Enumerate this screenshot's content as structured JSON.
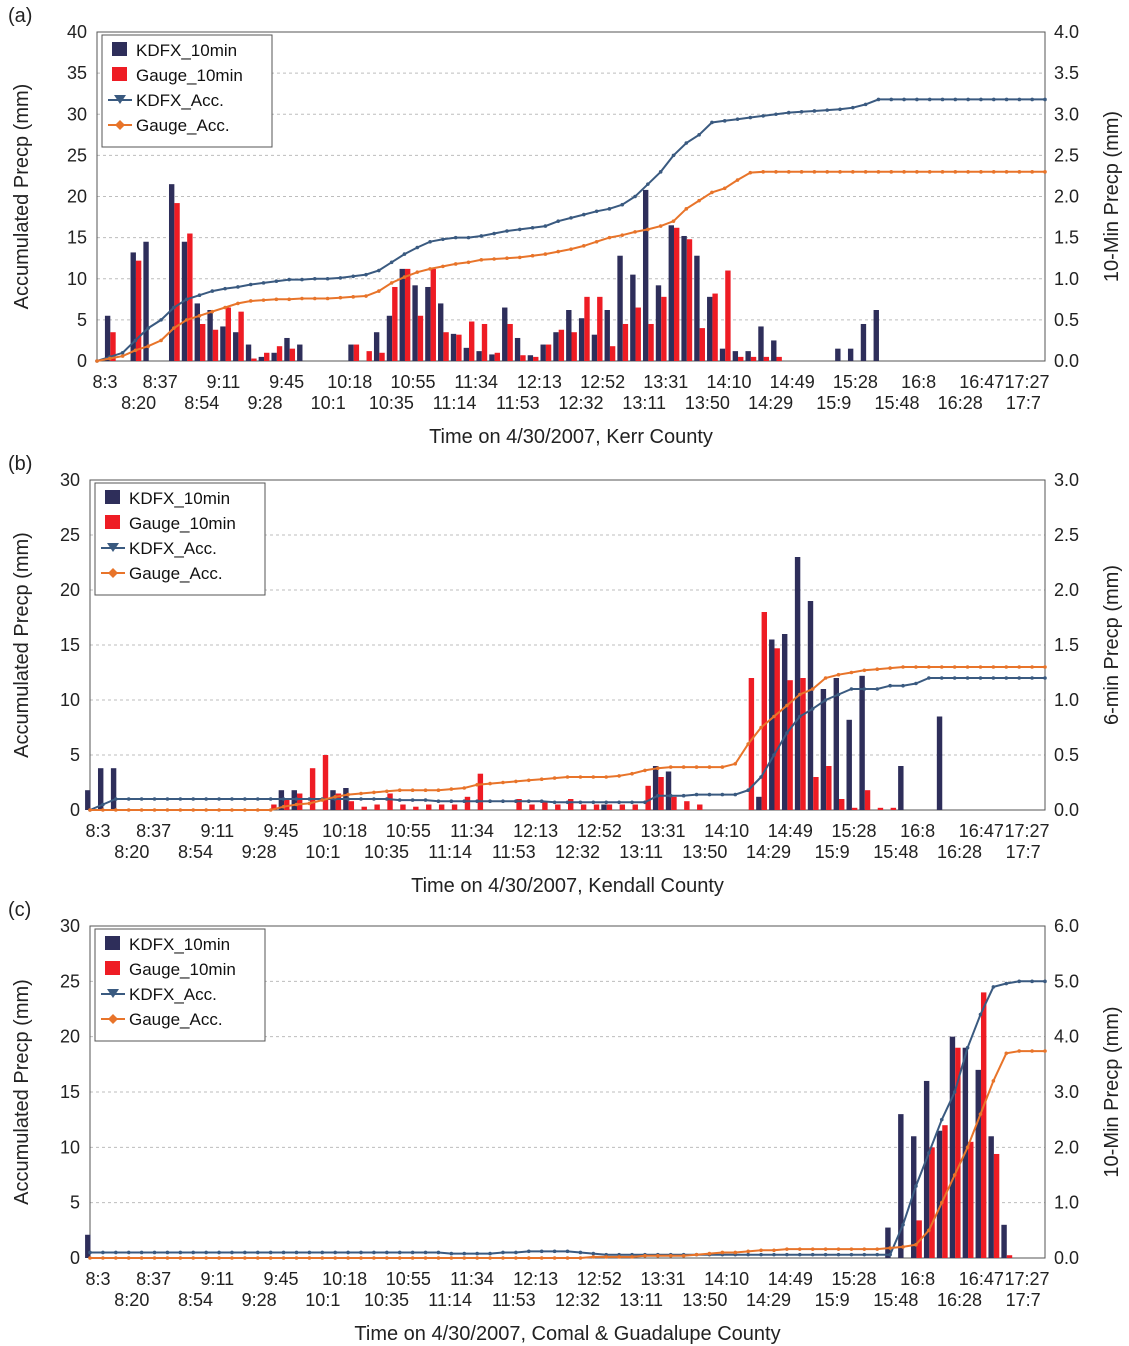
{
  "colors": {
    "kdfx_bar": "#2e2e5a",
    "gauge_bar": "#ee1c24",
    "kdfx_acc": "#3a5a80",
    "gauge_acc": "#e8742a"
  },
  "time_labels_upper": [
    "8:3",
    "8:37",
    "9:11",
    "9:45",
    "10:18",
    "10:55",
    "11:34",
    "12:13",
    "12:52",
    "13:31",
    "14:10",
    "14:49",
    "15:28",
    "16:8",
    "16:47",
    "17:27"
  ],
  "time_labels_lower": [
    "8:20",
    "8:54",
    "9:28",
    "10:1",
    "10:35",
    "11:14",
    "11:53",
    "12:32",
    "13:11",
    "13:50",
    "14:29",
    "15:9",
    "15:48",
    "16:28",
    "17:7"
  ],
  "chart_data": [
    {
      "panel": "(a)",
      "type": "bar",
      "xlabel": "Time on 4/30/2007, Kerr County",
      "ylabel": "Accumulated Precp (mm)",
      "y2label": "10-Min Precp (mm)",
      "ylim": [
        0,
        40
      ],
      "y2lim": [
        0,
        4
      ],
      "yticks": [
        "0",
        "5",
        "10",
        "15",
        "20",
        "25",
        "30",
        "35",
        "40"
      ],
      "y2ticks": [
        "0.0",
        "0.5",
        "1.0",
        "1.5",
        "2.0",
        "2.5",
        "3.0",
        "3.5",
        "4.0"
      ],
      "legend": [
        "KDFX_10min",
        "Gauge_10min",
        "KDFX_Acc.",
        "Gauge_Acc."
      ],
      "legend_position": "top-left",
      "series": [
        {
          "name": "KDFX_10min",
          "kind": "bar",
          "axis": "right",
          "values": [
            0,
            0.55,
            0,
            1.32,
            1.45,
            0,
            2.15,
            1.45,
            0.7,
            0.62,
            0.42,
            0.35,
            0.2,
            0.05,
            0.1,
            0.28,
            0.2,
            0,
            0,
            0,
            0.2,
            0,
            0.35,
            0.55,
            1.12,
            0.92,
            0.9,
            0.7,
            0.33,
            0.16,
            0.12,
            0.08,
            0.65,
            0.28,
            0.07,
            0.2,
            0.35,
            0.62,
            0.52,
            0.32,
            0.62,
            1.28,
            1.05,
            2.08,
            0.92,
            1.65,
            1.52,
            1.28,
            0.78,
            0.15,
            0.12,
            0.12,
            0.42,
            0.25,
            0,
            0,
            0,
            0,
            0.15,
            0.15,
            0.45,
            0.62,
            0,
            0,
            0,
            0,
            0,
            0,
            0,
            0,
            0,
            0,
            0,
            0,
            0
          ]
        },
        {
          "name": "Gauge_10min",
          "kind": "bar",
          "axis": "right",
          "values": [
            0,
            0.35,
            0,
            1.22,
            0,
            0,
            1.92,
            1.55,
            0.45,
            0.38,
            0.65,
            0.6,
            0.03,
            0.1,
            0.18,
            0.15,
            0,
            0,
            0,
            0,
            0.2,
            0.12,
            0.1,
            0.9,
            1.12,
            0.55,
            1.12,
            0.35,
            0.32,
            0.48,
            0.45,
            0.1,
            0.45,
            0.07,
            0.05,
            0.2,
            0.38,
            0.35,
            0.78,
            0.78,
            0.18,
            0.45,
            0.65,
            0.45,
            0.78,
            1.62,
            1.48,
            0.4,
            0.82,
            1.1,
            0.05,
            0.05,
            0.05,
            0.05,
            0,
            0,
            0,
            0,
            0,
            0,
            0,
            0,
            0,
            0,
            0,
            0,
            0,
            0,
            0,
            0,
            0,
            0,
            0,
            0,
            0
          ]
        },
        {
          "name": "KDFX_Acc.",
          "kind": "line",
          "axis": "left",
          "values": [
            0,
            0.5,
            1,
            2.5,
            4,
            5,
            6.5,
            7.5,
            8,
            8.5,
            8.8,
            9,
            9.3,
            9.5,
            9.7,
            9.9,
            9.9,
            10,
            10,
            10.1,
            10.3,
            10.5,
            11,
            12,
            13,
            13.8,
            14.5,
            14.8,
            15,
            15,
            15.2,
            15.5,
            15.8,
            16,
            16.2,
            16.4,
            17,
            17.4,
            17.8,
            18.2,
            18.5,
            19,
            20,
            21.5,
            23,
            25,
            26.5,
            27.5,
            29,
            29.2,
            29.4,
            29.6,
            29.8,
            30,
            30.2,
            30.3,
            30.4,
            30.5,
            30.6,
            30.8,
            31.2,
            31.8,
            31.8,
            31.8,
            31.8,
            31.8,
            31.8,
            31.8,
            31.8,
            31.8,
            31.8,
            31.8,
            31.8,
            31.8,
            31.8
          ]
        },
        {
          "name": "Gauge_Acc.",
          "kind": "line",
          "axis": "left",
          "values": [
            0,
            0.3,
            0.6,
            1.3,
            1.8,
            2.5,
            4,
            5,
            5.5,
            6,
            6.5,
            7,
            7.3,
            7.4,
            7.5,
            7.5,
            7.6,
            7.6,
            7.6,
            7.7,
            7.8,
            7.9,
            8.5,
            9.5,
            10.2,
            10.8,
            11.2,
            11.5,
            11.8,
            12,
            12.3,
            12.4,
            12.5,
            12.6,
            12.8,
            13,
            13.3,
            13.6,
            14,
            14.5,
            15,
            15.3,
            15.7,
            16,
            16.4,
            17,
            18.5,
            19.5,
            20.5,
            21,
            22,
            22.9,
            23,
            23,
            23,
            23,
            23,
            23,
            23,
            23,
            23,
            23,
            23,
            23,
            23,
            23,
            23,
            23,
            23,
            23,
            23,
            23,
            23,
            23,
            23
          ]
        }
      ]
    },
    {
      "panel": "(b)",
      "type": "bar",
      "xlabel": "Time on 4/30/2007, Kendall County",
      "ylabel": "Accumulated Precp (mm)",
      "y2label": "6-min Precp (mm)",
      "ylim": [
        0,
        30
      ],
      "y2lim": [
        0,
        3
      ],
      "yticks": [
        "0",
        "5",
        "10",
        "15",
        "20",
        "25",
        "30"
      ],
      "y2ticks": [
        "0.0",
        "0.5",
        "1.0",
        "1.5",
        "2.0",
        "2.5",
        "3.0"
      ],
      "legend": [
        "KDFX_10min",
        "Gauge_10min",
        "KDFX_Acc.",
        "Gauge_Acc."
      ],
      "legend_position": "top-left",
      "series": [
        {
          "name": "KDFX_10min",
          "kind": "bar",
          "axis": "right",
          "values": [
            0.18,
            0.38,
            0.38,
            0,
            0,
            0,
            0,
            0,
            0,
            0,
            0,
            0,
            0,
            0,
            0,
            0.18,
            0.18,
            0,
            0,
            0.18,
            0.2,
            0,
            0,
            0,
            0,
            0,
            0,
            0,
            0,
            0,
            0,
            0,
            0,
            0,
            0,
            0,
            0,
            0,
            0,
            0,
            0.05,
            0,
            0,
            0,
            0.4,
            0.35,
            0,
            0,
            0,
            0,
            0,
            0,
            0.12,
            1.55,
            1.6,
            2.3,
            1.9,
            1.1,
            1.2,
            0.82,
            1.22,
            0,
            0,
            0.4,
            0,
            0,
            0.85,
            0,
            0,
            0,
            0,
            0,
            0,
            0,
            0
          ]
        },
        {
          "name": "Gauge_10min",
          "kind": "bar",
          "axis": "right",
          "values": [
            0,
            0,
            0,
            0,
            0,
            0,
            0,
            0,
            0,
            0,
            0,
            0,
            0,
            0,
            0.05,
            0.1,
            0.15,
            0.38,
            0.5,
            0.15,
            0.08,
            0.03,
            0.05,
            0.15,
            0.05,
            0.03,
            0.05,
            0.05,
            0.05,
            0.12,
            0.33,
            0,
            0,
            0.1,
            0.05,
            0.08,
            0.05,
            0.1,
            0.05,
            0.05,
            0.05,
            0.05,
            0.05,
            0.22,
            0.3,
            0.12,
            0.08,
            0.05,
            0,
            0,
            0,
            1.2,
            1.8,
            1.47,
            1.18,
            1.2,
            0.3,
            0.4,
            0.1,
            0.02,
            0.18,
            0.02,
            0.02,
            0,
            0,
            0,
            0,
            0,
            0,
            0,
            0,
            0,
            0,
            0,
            0
          ]
        },
        {
          "name": "KDFX_Acc.",
          "kind": "line",
          "axis": "left",
          "values": [
            0,
            0.5,
            1,
            1,
            1,
            1,
            1,
            1,
            1,
            1,
            1,
            1,
            1,
            1,
            1,
            1,
            1,
            1,
            1,
            1,
            1,
            1,
            1,
            1,
            0.9,
            0.9,
            0.9,
            0.8,
            0.8,
            0.8,
            0.8,
            0.8,
            0.8,
            0.8,
            0.8,
            0.8,
            0.7,
            0.7,
            0.7,
            0.7,
            0.7,
            0.7,
            0.7,
            0.7,
            1.3,
            1.3,
            1.3,
            1.4,
            1.4,
            1.4,
            1.4,
            1.8,
            3,
            5,
            7,
            8.5,
            9.2,
            10,
            10.5,
            11,
            11,
            11,
            11.3,
            11.3,
            11.5,
            12,
            12,
            12,
            12,
            12,
            12,
            12,
            12,
            12,
            12
          ]
        },
        {
          "name": "Gauge_Acc.",
          "kind": "line",
          "axis": "left",
          "values": [
            0,
            0,
            0,
            0,
            0,
            0,
            0,
            0,
            0,
            0,
            0,
            0,
            0,
            0,
            0,
            0.3,
            0.5,
            0.6,
            0.9,
            1.2,
            1.4,
            1.5,
            1.6,
            1.7,
            1.8,
            1.8,
            1.8,
            1.8,
            1.9,
            2,
            2.3,
            2.4,
            2.5,
            2.6,
            2.7,
            2.8,
            2.9,
            3,
            3,
            3,
            3,
            3.1,
            3.3,
            3.6,
            3.8,
            3.9,
            3.9,
            3.9,
            3.9,
            3.9,
            4.2,
            6,
            7.5,
            8.5,
            9.5,
            10.5,
            11,
            12,
            12.3,
            12.5,
            12.7,
            12.8,
            12.9,
            13,
            13,
            13,
            13,
            13,
            13,
            13,
            13,
            13,
            13,
            13,
            13
          ]
        }
      ]
    },
    {
      "panel": "(c)",
      "type": "bar",
      "xlabel": "Time on 4/30/2007, Comal & Guadalupe County",
      "ylabel": "Accumulated Precp (mm)",
      "y2label": "10-Min Precp (mm)",
      "ylim": [
        0,
        30
      ],
      "y2lim": [
        0,
        6
      ],
      "yticks": [
        "0",
        "5",
        "10",
        "15",
        "20",
        "25",
        "30"
      ],
      "y2ticks": [
        "0.0",
        "1.0",
        "2.0",
        "3.0",
        "4.0",
        "5.0",
        "6.0"
      ],
      "legend": [
        "KDFX_10min",
        "Gauge_10min",
        "KDFX_Acc.",
        "Gauge_Acc."
      ],
      "legend_position": "top-left",
      "series": [
        {
          "name": "KDFX_10min",
          "kind": "bar",
          "axis": "right",
          "values": [
            0.42,
            0,
            0,
            0,
            0,
            0,
            0,
            0,
            0,
            0,
            0,
            0,
            0,
            0,
            0,
            0,
            0,
            0,
            0,
            0,
            0,
            0,
            0,
            0,
            0,
            0,
            0,
            0,
            0,
            0,
            0,
            0,
            0,
            0,
            0,
            0,
            0,
            0,
            0,
            0,
            0,
            0,
            0,
            0,
            0,
            0,
            0,
            0,
            0,
            0,
            0,
            0,
            0,
            0,
            0,
            0,
            0,
            0,
            0,
            0,
            0,
            0,
            0.55,
            2.6,
            2.2,
            3.2,
            2.3,
            4,
            3.8,
            3.4,
            2.2,
            0.6,
            0,
            0,
            0
          ]
        },
        {
          "name": "Gauge_10min",
          "kind": "bar",
          "axis": "right",
          "values": [
            0,
            0,
            0,
            0,
            0,
            0,
            0,
            0,
            0,
            0,
            0,
            0,
            0,
            0,
            0,
            0,
            0,
            0,
            0,
            0,
            0,
            0,
            0,
            0,
            0,
            0,
            0,
            0,
            0,
            0,
            0,
            0,
            0,
            0,
            0,
            0,
            0,
            0,
            0,
            0,
            0,
            0,
            0,
            0,
            0,
            0,
            0,
            0,
            0,
            0,
            0,
            0,
            0,
            0,
            0,
            0,
            0,
            0,
            0,
            0,
            0,
            0,
            0,
            0,
            0.68,
            2,
            2.4,
            3.8,
            2.1,
            4.8,
            1.88,
            0.05,
            0,
            0,
            0
          ]
        },
        {
          "name": "KDFX_Acc.",
          "kind": "line",
          "axis": "left",
          "values": [
            0.5,
            0.5,
            0.5,
            0.5,
            0.5,
            0.5,
            0.5,
            0.5,
            0.5,
            0.5,
            0.5,
            0.5,
            0.5,
            0.5,
            0.5,
            0.5,
            0.5,
            0.5,
            0.5,
            0.5,
            0.5,
            0.5,
            0.5,
            0.5,
            0.5,
            0.5,
            0.5,
            0.5,
            0.4,
            0.4,
            0.4,
            0.4,
            0.5,
            0.5,
            0.6,
            0.6,
            0.6,
            0.6,
            0.5,
            0.4,
            0.3,
            0.3,
            0.3,
            0.3,
            0.3,
            0.3,
            0.3,
            0.3,
            0.3,
            0.3,
            0.3,
            0.3,
            0.3,
            0.3,
            0.3,
            0.3,
            0.3,
            0.3,
            0.3,
            0.3,
            0.3,
            0.3,
            0.3,
            3,
            6.5,
            9.5,
            12.5,
            15,
            19,
            22,
            24.5,
            24.8,
            25,
            25,
            25
          ]
        },
        {
          "name": "Gauge_Acc.",
          "kind": "line",
          "axis": "left",
          "values": [
            0,
            0,
            0,
            0,
            0,
            0,
            0,
            0,
            0,
            0,
            0,
            0,
            0,
            0,
            0,
            0,
            0,
            0,
            0,
            0,
            0,
            0,
            0,
            0,
            0,
            0,
            0,
            0,
            0,
            0,
            0,
            0,
            0,
            0,
            0,
            0,
            0,
            0,
            0,
            0.1,
            0.1,
            0.1,
            0.1,
            0.2,
            0.2,
            0.2,
            0.2,
            0.3,
            0.4,
            0.5,
            0.5,
            0.6,
            0.7,
            0.7,
            0.8,
            0.8,
            0.8,
            0.8,
            0.8,
            0.8,
            0.8,
            0.8,
            0.9,
            1,
            1.2,
            2.5,
            5,
            7.5,
            10,
            13,
            16,
            18.5,
            18.7,
            18.7,
            18.7
          ]
        }
      ]
    }
  ]
}
